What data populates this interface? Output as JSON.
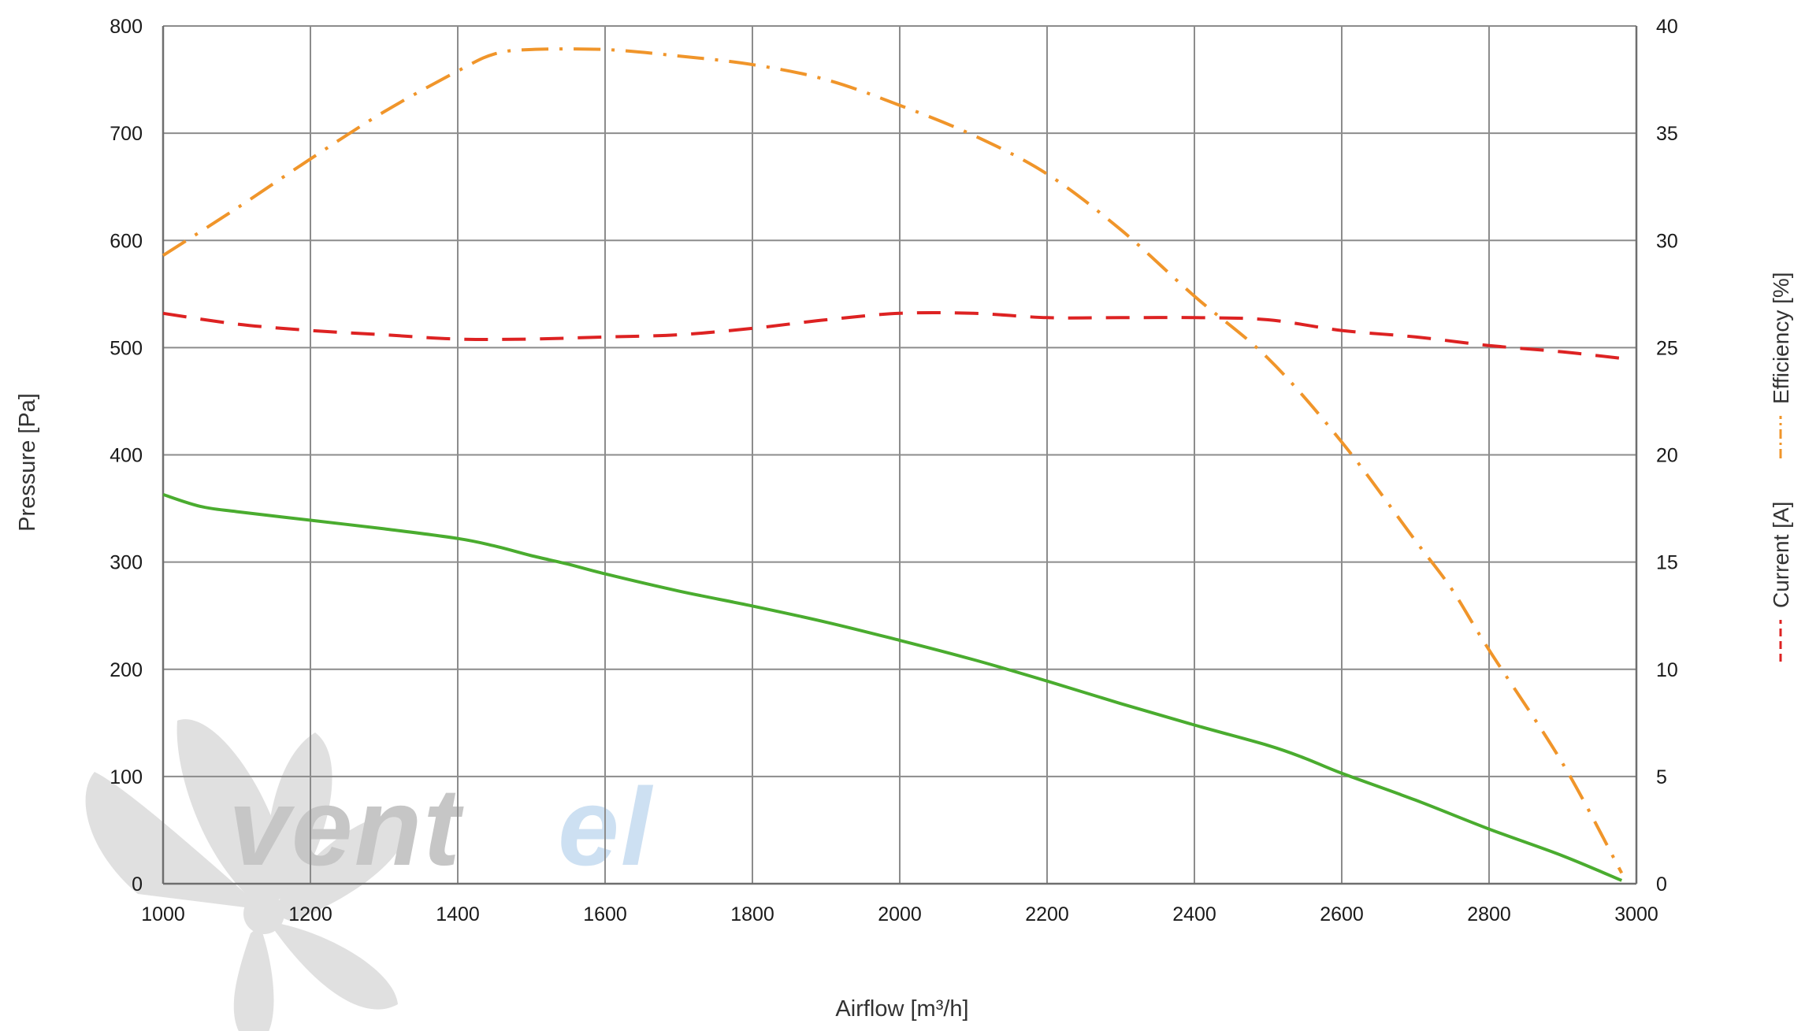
{
  "watermark": {
    "text_dark": "vent",
    "text_accent": "el",
    "color_dark": "#c8c8c8",
    "color_accent": "#cfe2f3"
  },
  "chart_data": {
    "type": "line",
    "xlabel": "Airflow [m³/h]",
    "ylabel": "Pressure [Pa]",
    "y2label_current": "Current [A]",
    "y2label_efficiency": "Efficiency [%]",
    "xlim": [
      1000,
      3000
    ],
    "ylim": [
      0,
      800
    ],
    "y2lim": [
      0,
      40
    ],
    "x_ticks": [
      1000,
      1200,
      1400,
      1600,
      1800,
      2000,
      2200,
      2400,
      2600,
      2800,
      3000
    ],
    "y_ticks": [
      0,
      100,
      200,
      300,
      400,
      500,
      600,
      700,
      800
    ],
    "y2_ticks": [
      0,
      5,
      10,
      15,
      20,
      25,
      30,
      35,
      40
    ],
    "grid": true,
    "legend_placement": "right, vertical",
    "series": [
      {
        "key": "pressure",
        "axis": "left",
        "color": "#4aac2f",
        "style": "solid",
        "x": [
          1000,
          1050,
          1100,
          1200,
          1300,
          1400,
          1450,
          1500,
          1550,
          1600,
          1700,
          1800,
          1900,
          2000,
          2100,
          2200,
          2300,
          2400,
          2500,
          2550,
          2600,
          2700,
          2800,
          2900,
          2980
        ],
        "values": [
          363,
          352,
          347,
          339,
          331,
          322,
          315,
          306,
          298,
          289,
          273,
          259,
          244,
          227,
          209,
          189,
          168,
          148,
          129,
          117,
          103,
          78,
          51,
          26,
          3
        ]
      },
      {
        "key": "current",
        "axis": "right",
        "color": "#dd2222",
        "style": "dashed",
        "x": [
          1000,
          1100,
          1200,
          1300,
          1400,
          1500,
          1600,
          1700,
          1800,
          1900,
          2000,
          2100,
          2200,
          2300,
          2400,
          2500,
          2600,
          2700,
          2800,
          2900,
          2980
        ],
        "values": [
          26.6,
          26.1,
          25.8,
          25.6,
          25.4,
          25.4,
          25.5,
          25.6,
          25.9,
          26.3,
          26.6,
          26.6,
          26.4,
          26.4,
          26.4,
          26.3,
          25.8,
          25.5,
          25.1,
          24.8,
          24.5
        ]
      },
      {
        "key": "efficiency",
        "axis": "right",
        "color": "#f0952a",
        "style": "dash-dot",
        "x": [
          1000,
          1100,
          1200,
          1300,
          1400,
          1450,
          1500,
          1600,
          1700,
          1800,
          1900,
          2000,
          2100,
          2200,
          2300,
          2400,
          2500,
          2600,
          2700,
          2750,
          2800,
          2900,
          2980
        ],
        "values": [
          29.3,
          31.5,
          33.8,
          36.0,
          37.9,
          38.7,
          38.9,
          38.9,
          38.6,
          38.2,
          37.5,
          36.3,
          34.9,
          33.1,
          30.5,
          27.4,
          24.5,
          20.6,
          16.0,
          13.7,
          10.9,
          5.6,
          0.5
        ]
      }
    ]
  }
}
